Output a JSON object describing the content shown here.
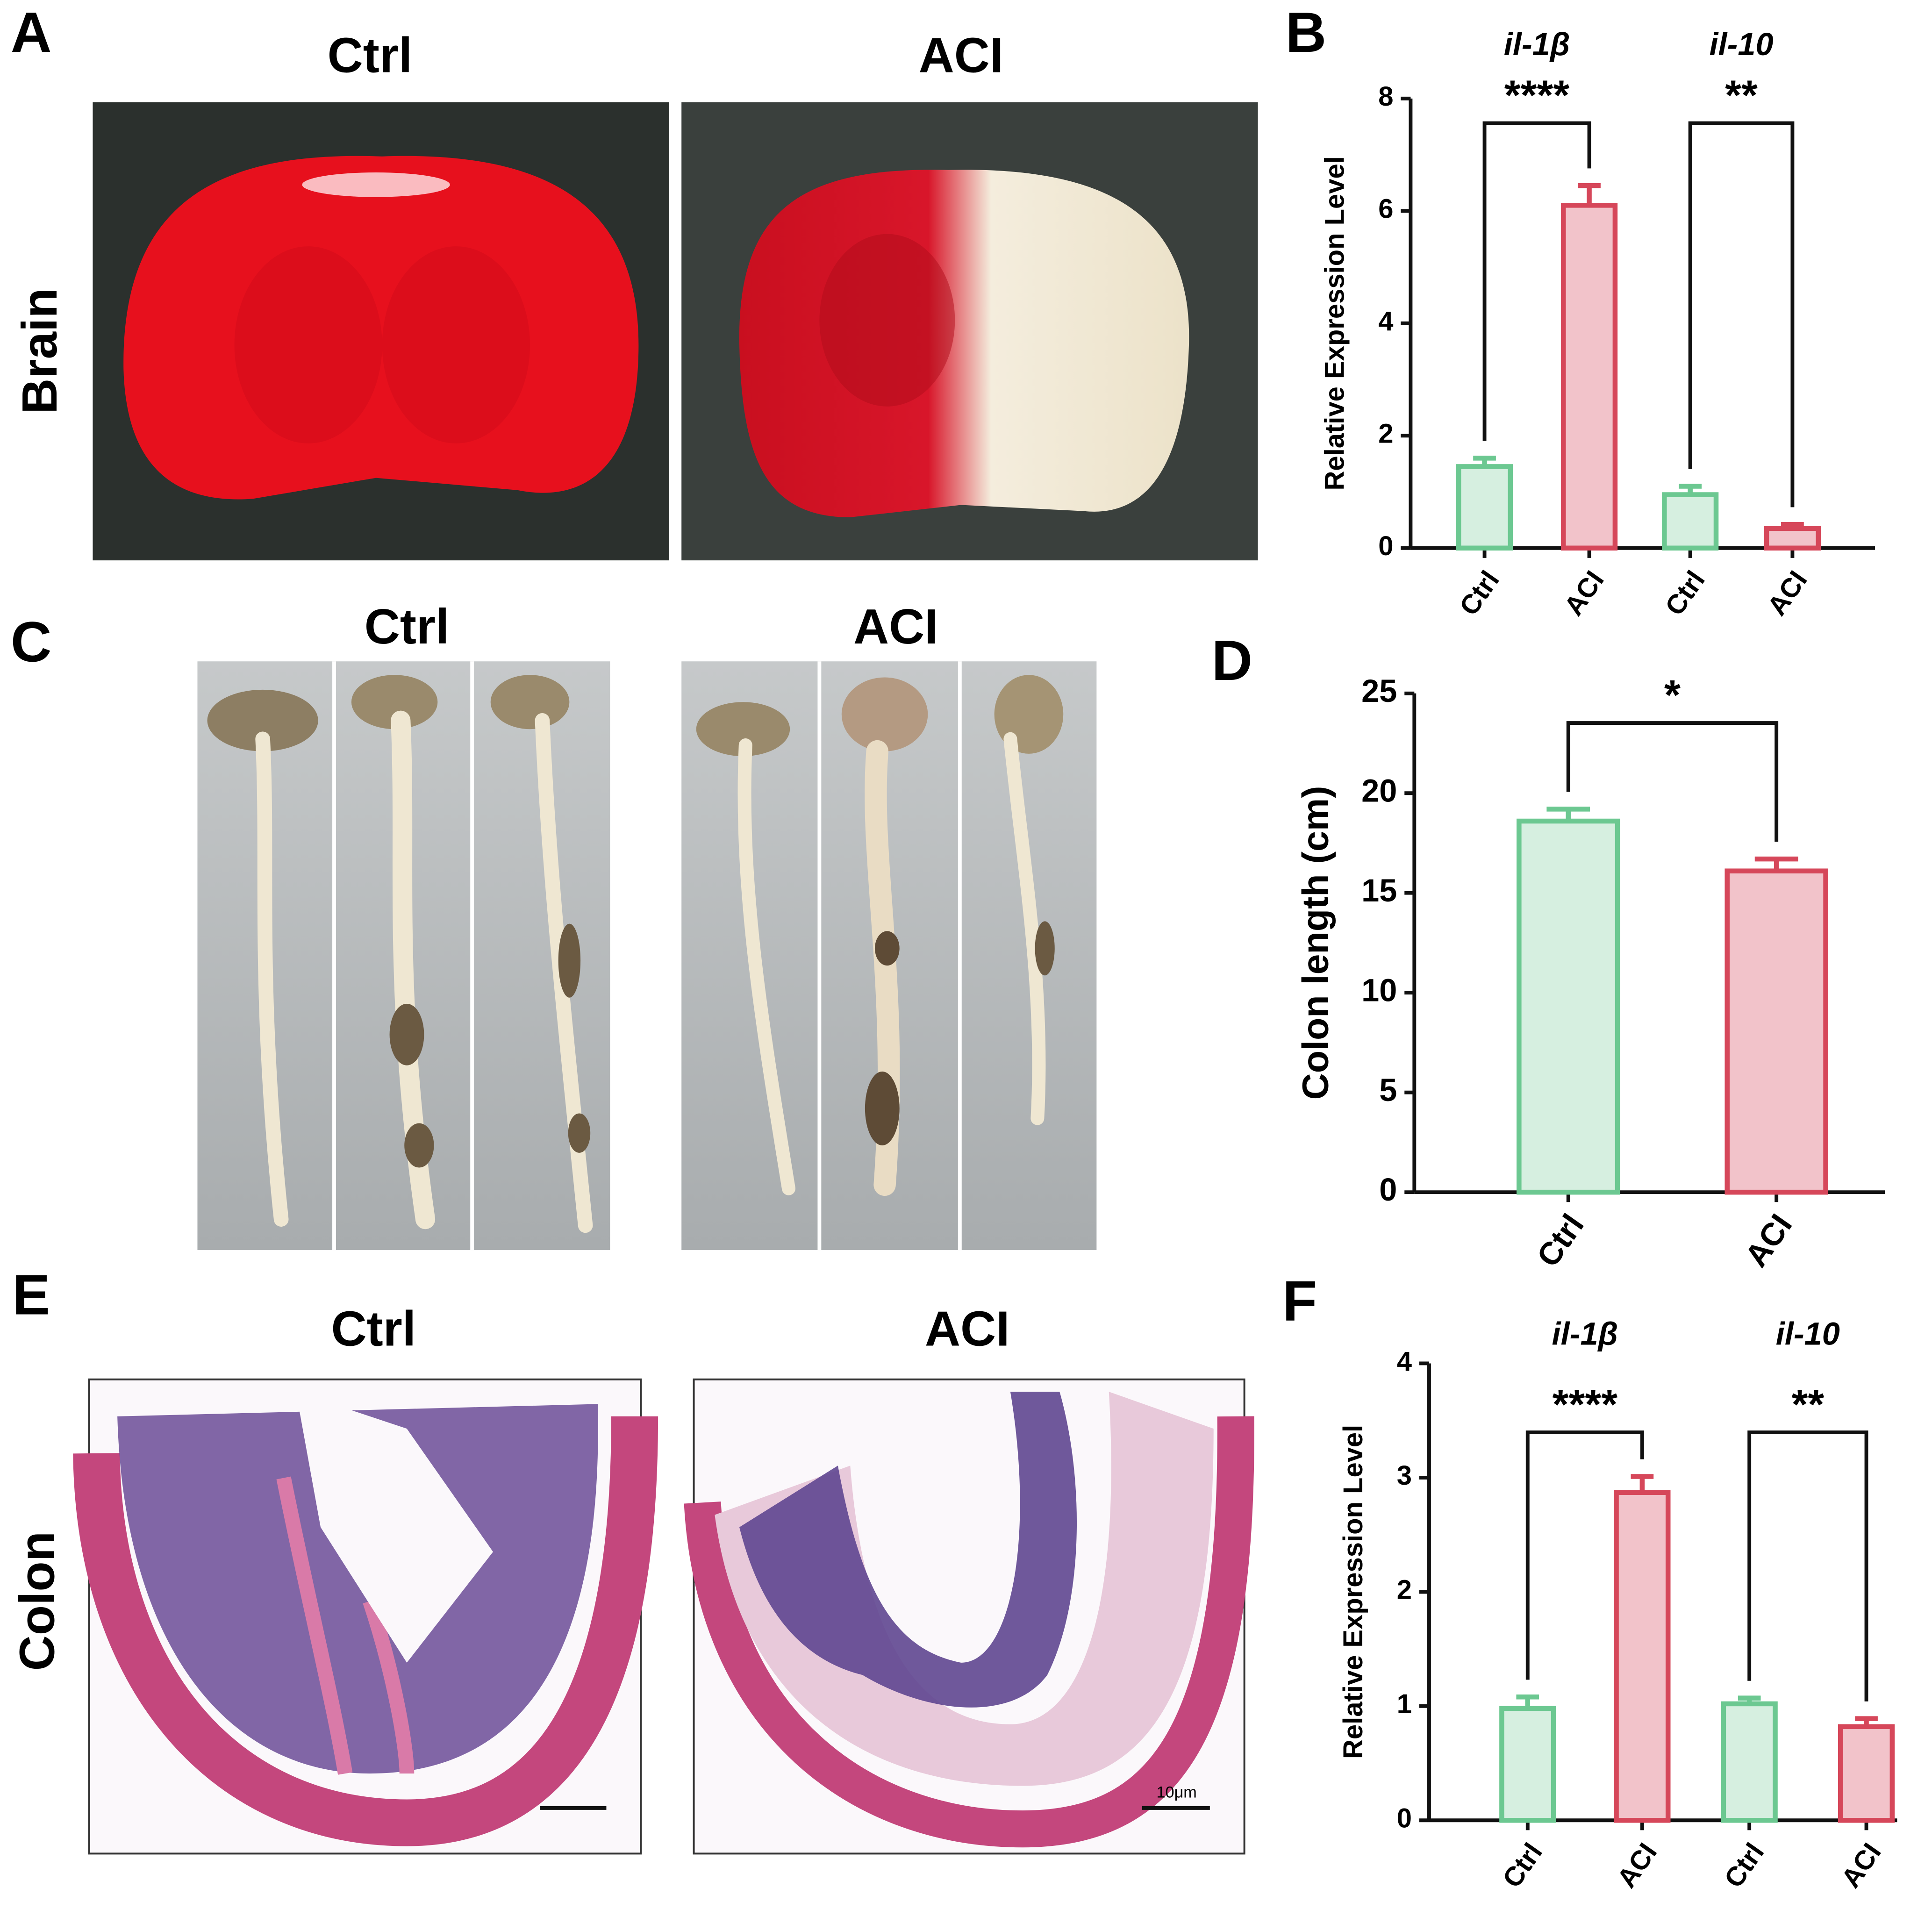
{
  "panels": {
    "A": {
      "label": "A",
      "titles": [
        "Ctrl",
        "ACI"
      ],
      "row_label": "Brain"
    },
    "B": {
      "label": "B"
    },
    "C": {
      "label": "C",
      "titles": [
        "Ctrl",
        "ACI"
      ]
    },
    "D": {
      "label": "D"
    },
    "E": {
      "label": "E",
      "titles": [
        "Ctrl",
        "ACI"
      ],
      "row_label": "Colon",
      "scale_label": "10μm"
    },
    "F": {
      "label": "F"
    }
  },
  "chart_data": [
    {
      "type": "bar",
      "ylabel": "Relative Expression Level",
      "categories": [
        "Ctrl",
        "ACI",
        "Ctrl",
        "ACI"
      ],
      "values": [
        1.45,
        6.1,
        0.95,
        0.35
      ],
      "errors": [
        0.15,
        0.35,
        0.15,
        0.07
      ],
      "colors": [
        "#6cc891",
        "#d6475a",
        "#6cc891",
        "#d6475a"
      ],
      "fill_colors": [
        "#d6efe0",
        "#f2c3ca",
        "#d6efe0",
        "#f2c3ca"
      ],
      "groups": [
        {
          "label": "il-1β",
          "significance": "****"
        },
        {
          "label": "il-10",
          "significance": "**"
        }
      ],
      "ylim": [
        0,
        8
      ],
      "yticks": [
        0,
        2,
        4,
        6,
        8
      ]
    },
    {
      "type": "bar",
      "ylabel": "Colon length (cm)",
      "categories": [
        "Ctrl",
        "ACI"
      ],
      "values": [
        18.6,
        16.1
      ],
      "errors": [
        0.6,
        0.6
      ],
      "colors": [
        "#6cc891",
        "#d6475a"
      ],
      "fill_colors": [
        "#d6efe0",
        "#f2c3ca"
      ],
      "significance": "*",
      "ylim": [
        0,
        25
      ],
      "yticks": [
        0,
        5,
        10,
        15,
        20,
        25
      ]
    },
    {
      "type": "bar",
      "ylabel": "Relative Expression Level",
      "categories": [
        "Ctrl",
        "ACI",
        "Ctrl",
        "ACI"
      ],
      "values": [
        0.98,
        2.87,
        1.02,
        0.82
      ],
      "errors": [
        0.1,
        0.14,
        0.05,
        0.07
      ],
      "colors": [
        "#6cc891",
        "#d6475a",
        "#6cc891",
        "#d6475a"
      ],
      "fill_colors": [
        "#d6efe0",
        "#f2c3ca",
        "#d6efe0",
        "#f2c3ca"
      ],
      "groups": [
        {
          "label": "il-1β",
          "significance": "****"
        },
        {
          "label": "il-10",
          "significance": "**"
        }
      ],
      "ylim": [
        0,
        4
      ],
      "yticks": [
        0,
        1,
        2,
        3,
        4
      ]
    }
  ]
}
